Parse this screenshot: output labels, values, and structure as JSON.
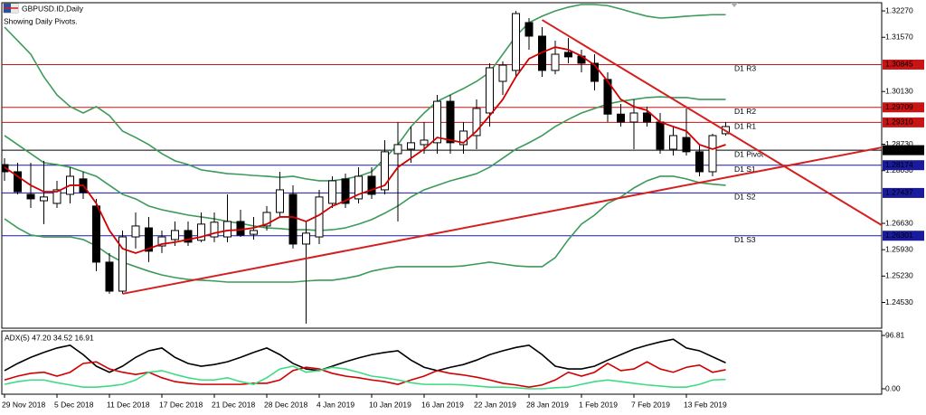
{
  "chart_data": [
    {
      "type": "candlestick",
      "title": "GBPUSD.ID,Daily",
      "subtitle": "Showing Daily Pivots.",
      "categories": [
        "29 Nov 2018",
        null,
        null,
        null,
        "5 Dec 2018",
        null,
        null,
        null,
        "11 Dec 2018",
        null,
        null,
        null,
        "17 Dec 2018",
        null,
        null,
        null,
        "21 Dec 2018",
        null,
        null,
        null,
        "28 Dec 2018",
        null,
        null,
        null,
        "4 Jan 2019",
        null,
        null,
        null,
        "10 Jan 2019",
        null,
        null,
        null,
        "16 Jan 2019",
        null,
        null,
        null,
        "22 Jan 2019",
        null,
        null,
        null,
        "28 Jan 2019",
        null,
        null,
        null,
        "1 Feb 2019",
        null,
        null,
        null,
        "7 Feb 2019",
        null,
        null,
        null,
        "13 Feb 2019",
        null,
        null,
        null
      ],
      "open": [
        1.2819,
        1.28,
        1.274,
        1.2723,
        1.2716,
        1.274,
        1.2781,
        1.2709,
        1.256,
        1.2483,
        1.2627,
        1.2651,
        1.2603,
        1.262,
        1.2644,
        1.2618,
        1.2627,
        1.2627,
        1.2668,
        1.2634,
        1.2656,
        1.2692,
        1.274,
        1.2608,
        1.2627,
        1.2716,
        1.2781,
        1.2728,
        1.2788,
        1.2752,
        1.2848,
        1.286,
        1.2872,
        1.2877,
        1.2987,
        1.2872,
        1.2896,
        1.2956,
        1.304,
        1.3069,
        1.3196,
        1.316,
        1.3069,
        1.3117,
        1.3107,
        1.3088,
        1.3045,
        1.2953,
        1.2932,
        1.2956,
        1.2932,
        1.286,
        1.2891,
        1.2853,
        1.28,
        1.2901
      ],
      "high": [
        1.2836,
        1.2824,
        1.2824,
        1.2829,
        1.2776,
        1.2812,
        1.28,
        1.2728,
        1.2584,
        1.2644,
        1.2692,
        1.268,
        1.2644,
        1.2668,
        1.2668,
        1.2692,
        1.2692,
        1.274,
        1.2699,
        1.268,
        1.2709,
        1.28,
        1.2764,
        1.2668,
        1.2752,
        1.2788,
        1.2795,
        1.2812,
        1.2812,
        1.2884,
        1.2932,
        1.292,
        1.2932,
        1.3004,
        1.3004,
        1.2932,
        1.2992,
        1.3088,
        1.3093,
        1.3227,
        1.3208,
        1.3184,
        1.3148,
        1.3155,
        1.3124,
        1.3112,
        1.3064,
        1.298,
        1.2992,
        1.2973,
        1.2956,
        1.292,
        1.2968,
        1.2872,
        1.2901,
        1.2932
      ],
      "low": [
        1.2776,
        1.274,
        1.2704,
        1.2661,
        1.2704,
        1.2716,
        1.2728,
        1.2536,
        1.2476,
        1.2476,
        1.2596,
        1.256,
        1.2584,
        1.2603,
        1.2603,
        1.2613,
        1.2613,
        1.2613,
        1.2627,
        1.262,
        1.2644,
        1.268,
        1.2596,
        1.2397,
        1.2608,
        1.2704,
        1.2704,
        1.2716,
        1.2728,
        1.274,
        1.2668,
        1.2824,
        1.2848,
        1.2848,
        1.2848,
        1.2848,
        1.286,
        1.292,
        1.3004,
        1.3052,
        1.3124,
        1.3052,
        1.3059,
        1.3088,
        1.3064,
        1.3016,
        1.2932,
        1.292,
        1.286,
        1.292,
        1.2848,
        1.2843,
        1.2843,
        1.2788,
        1.2788,
        1.2896
      ],
      "close": [
        1.28,
        1.2747,
        1.2728,
        1.2733,
        1.2752,
        1.2788,
        1.2745,
        1.256,
        1.2483,
        1.2627,
        1.2656,
        1.2589,
        1.2627,
        1.2644,
        1.2613,
        1.2661,
        1.2666,
        1.2668,
        1.2632,
        1.2644,
        1.2692,
        1.2752,
        1.2608,
        1.2637,
        1.2733,
        1.2776,
        1.2716,
        1.2788,
        1.274,
        1.2853,
        1.2872,
        1.2877,
        1.2884,
        1.2987,
        1.2877,
        1.2908,
        1.2968,
        1.3076,
        1.3083,
        1.322,
        1.316,
        1.3069,
        1.3112,
        1.3105,
        1.3088,
        1.304,
        1.2953,
        1.2932,
        1.2956,
        1.2932,
        1.286,
        1.2896,
        1.2853,
        1.28,
        1.2896,
        1.292
      ],
      "up_color": "#ffffff",
      "down_color": "#000000",
      "wick_color": "#000000",
      "ylim": [
        1.2387,
        1.3244
      ],
      "yticks": [
        {
          "value": 1.3227,
          "label": "1.32270"
        },
        {
          "value": 1.3157,
          "label": "1.31570"
        },
        {
          "value": 1.3013,
          "label": "1.30130"
        },
        {
          "value": 1.2873,
          "label": "1.28730"
        },
        {
          "value": 1.2803,
          "label": "1.28030"
        },
        {
          "value": 1.2663,
          "label": "1.26630"
        },
        {
          "value": 1.2593,
          "label": "1.25930"
        },
        {
          "value": 1.2523,
          "label": "1.25230"
        },
        {
          "value": 1.2453,
          "label": "1.24530"
        }
      ],
      "overlays": [
        {
          "color": "#3c9a5a",
          "values": [
            1.3184,
            1.3148,
            1.3112,
            1.3052,
            1.3004,
            1.2973,
            1.2956,
            1.2973,
            1.2949,
            1.2908,
            1.2891,
            1.2872,
            1.2848,
            1.2829,
            1.2819,
            1.2805,
            1.28,
            1.2795,
            1.2793,
            1.279,
            1.2788,
            1.2785,
            1.2788,
            1.2781,
            1.2776,
            1.2776,
            1.2781,
            1.2788,
            1.28,
            1.2836,
            1.2872,
            1.292,
            1.2956,
            1.2987,
            1.3004,
            1.3021,
            1.304,
            1.3064,
            1.3112,
            1.316,
            1.3196,
            1.3213,
            1.3227,
            1.3237,
            1.3244,
            1.3244,
            1.3241,
            1.3232,
            1.3222,
            1.3213,
            1.3208,
            1.321,
            1.3213,
            1.3215,
            1.3217,
            1.3217
          ]
        },
        {
          "color": "#3c9a5a",
          "values": [
            1.2896,
            1.2872,
            1.2848,
            1.2824,
            1.2819,
            1.2812,
            1.28,
            1.2788,
            1.2764,
            1.274,
            1.2728,
            1.2709,
            1.2699,
            1.2692,
            1.2685,
            1.268,
            1.2675,
            1.2668,
            1.2663,
            1.2656,
            1.2651,
            1.2649,
            1.2646,
            1.2646,
            1.2644,
            1.2646,
            1.2651,
            1.2661,
            1.2673,
            1.269,
            1.2709,
            1.2733,
            1.2752,
            1.2764,
            1.2776,
            1.2785,
            1.2795,
            1.2812,
            1.2836,
            1.286,
            1.2877,
            1.2896,
            1.292,
            1.2939,
            1.2956,
            1.2968,
            1.298,
            1.2987,
            1.2992,
            1.2997,
            1.2999,
            1.2997,
            1.2997,
            1.2992,
            1.2992,
            1.2992
          ]
        },
        {
          "color": "#3c9a5a",
          "values": [
            1.2675,
            1.2651,
            1.2632,
            1.2627,
            1.2627,
            1.2627,
            1.262,
            1.2603,
            1.2579,
            1.256,
            1.2548,
            1.2536,
            1.2526,
            1.2519,
            1.2514,
            1.2512,
            1.251,
            1.2507,
            1.2507,
            1.2507,
            1.2507,
            1.2507,
            1.2507,
            1.251,
            1.2512,
            1.2512,
            1.2517,
            1.2524,
            1.2536,
            1.2543,
            1.2548,
            1.2548,
            1.2548,
            1.2548,
            1.2548,
            1.255,
            1.2555,
            1.256,
            1.2555,
            1.255,
            1.2548,
            1.2548,
            1.2572,
            1.262,
            1.2661,
            1.2685,
            1.2716,
            1.2733,
            1.2757,
            1.2776,
            1.2788,
            1.2788,
            1.2781,
            1.2771,
            1.2767,
            1.2764
          ]
        },
        {
          "color": "#d00000",
          "values": [
            1.2812,
            1.2788,
            1.2764,
            1.2747,
            1.2747,
            1.2764,
            1.2764,
            1.2716,
            1.2644,
            1.2596,
            1.2584,
            1.2596,
            1.2608,
            1.2613,
            1.262,
            1.2627,
            1.2637,
            1.2644,
            1.2646,
            1.2651,
            1.2661,
            1.268,
            1.268,
            1.2668,
            1.2685,
            1.2709,
            1.2723,
            1.274,
            1.2752,
            1.2764,
            1.2812,
            1.2836,
            1.286,
            1.2891,
            1.2884,
            1.2877,
            1.2908,
            1.2949,
            1.2992,
            1.3052,
            1.31,
            1.3117,
            1.3131,
            1.3124,
            1.3107,
            1.3083,
            1.304,
            1.2992,
            1.2973,
            1.2963,
            1.2932,
            1.292,
            1.2908,
            1.2872,
            1.286,
            1.2872
          ]
        }
      ],
      "levels": [
        {
          "label": "D1 R3",
          "value": 1.30845,
          "value_label": "1.30845",
          "color": "#c81414"
        },
        {
          "label": "D1 R2",
          "value": 1.29709,
          "value_label": "1.29709",
          "color": "#c81414"
        },
        {
          "label": "D1 R1",
          "value": 1.2931,
          "value_label": "1.29310",
          "color": "#c81414"
        },
        {
          "label": "D1 Pivot",
          "value": 1.28573,
          "value_label": "1.28573",
          "color": "#000000"
        },
        {
          "label": "D1 S1",
          "value": 1.28174,
          "value_label": "1.28174",
          "color": "#1a1a9c"
        },
        {
          "label": "D1 S2",
          "value": 1.27437,
          "value_label": "1.27437",
          "color": "#1a1a9c"
        },
        {
          "label": "D1 S3",
          "value": 1.26301,
          "value_label": "1.26301",
          "color": "#1a1a9c"
        }
      ],
      "trendlines": [
        {
          "color": "#d42020",
          "x": [
            9,
            67
          ],
          "y": [
            1.2476,
            1.2865
          ]
        },
        {
          "color": "#d42020",
          "x": [
            41,
            67
          ],
          "y": [
            1.3203,
            1.2656
          ]
        }
      ]
    },
    {
      "type": "line",
      "title": "ADX(5) 47.20 34.52 16.91",
      "ylim": [
        -8.2,
        103.4
      ],
      "yticks": [
        96.81,
        {
          "value": 0,
          "label": "0.00"
        }
      ],
      "series": [
        {
          "color": "#000000",
          "values": [
            33,
            46,
            57,
            66,
            74,
            79,
            62,
            41,
            30,
            41,
            57,
            69,
            74,
            57,
            46,
            41,
            44,
            49,
            57,
            66,
            74,
            62,
            46,
            36,
            33,
            41,
            49,
            56,
            62,
            66,
            69,
            52,
            39,
            33,
            39,
            44,
            52,
            62,
            69,
            75,
            79,
            62,
            41,
            36,
            36,
            41,
            52,
            62,
            72,
            79,
            85,
            90,
            74,
            69,
            58,
            47.2
          ]
        },
        {
          "color": "#d00000",
          "values": [
            16,
            23,
            28,
            30,
            23,
            30,
            46,
            49,
            36,
            30,
            26,
            30,
            20,
            13,
            10,
            8,
            8,
            8,
            8,
            10,
            10,
            16,
            33,
            39,
            36,
            28,
            23,
            20,
            16,
            13,
            8,
            16,
            23,
            33,
            28,
            25,
            21,
            16,
            10,
            7,
            3,
            7,
            16,
            30,
            23,
            30,
            46,
            33,
            36,
            49,
            36,
            30,
            39,
            43,
            30,
            34.52
          ]
        },
        {
          "color": "#3ddc84",
          "values": [
            8,
            13,
            16,
            16,
            11,
            7,
            3,
            3,
            5,
            8,
            16,
            30,
            33,
            26,
            20,
            16,
            16,
            20,
            13,
            8,
            20,
            36,
            41,
            30,
            33,
            39,
            36,
            30,
            23,
            20,
            16,
            11,
            8,
            8,
            8,
            7,
            5,
            3,
            3,
            2,
            0,
            0,
            2,
            3,
            8,
            13,
            16,
            13,
            10,
            7,
            5,
            3,
            3,
            8,
            16,
            16.91
          ]
        }
      ]
    }
  ]
}
